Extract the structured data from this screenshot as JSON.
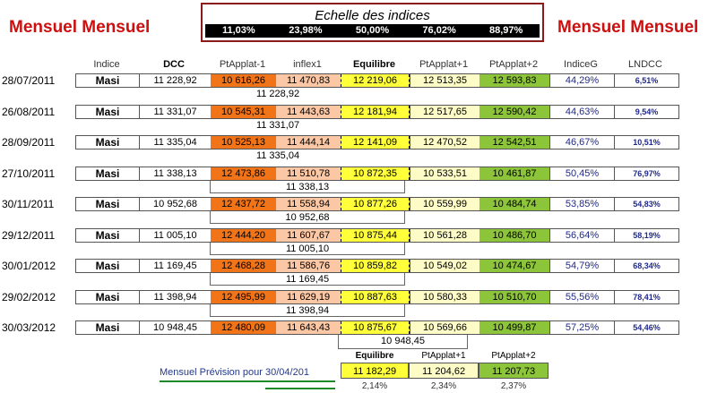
{
  "titles": {
    "left": "Mensuel  Mensuel",
    "right": "Mensuel Mensuel"
  },
  "scale": {
    "title": "Echelle des indices",
    "values": [
      "11,03%",
      "23,98%",
      "50,00%",
      "76,02%",
      "88,97%"
    ]
  },
  "headers": [
    "Indice",
    "DCC",
    "PtApplat-1",
    "inflex1",
    "Equilibre",
    "PtApplat+1",
    "PtApplat+2",
    "IndiceG",
    "LNDCC"
  ],
  "rows": [
    {
      "date": "28/07/2011",
      "indice": "Masi",
      "dcc": "11 228,92",
      "pa1": "10 616,26",
      "inflex": "11 470,83",
      "equilibre": "12 219,06",
      "pp1": "12 513,35",
      "pp2": "12 593,83",
      "indiceG": "44,29%",
      "lndcc": "6,51%",
      "sub": "11 228,92"
    },
    {
      "date": "26/08/2011",
      "indice": "Masi",
      "dcc": "11 331,07",
      "pa1": "10 545,31",
      "inflex": "11 443,63",
      "equilibre": "12 181,94",
      "pp1": "12 517,65",
      "pp2": "12 590,42",
      "indiceG": "44,63%",
      "lndcc": "9,54%",
      "sub": "11 331,07"
    },
    {
      "date": "28/09/2011",
      "indice": "Masi",
      "dcc": "11 335,04",
      "pa1": "10 525,13",
      "inflex": "11 444,14",
      "equilibre": "12 141,09",
      "pp1": "12 470,52",
      "pp2": "12 542,51",
      "indiceG": "46,67%",
      "lndcc": "10,51%",
      "sub": "11 335,04"
    },
    {
      "date": "27/10/2011",
      "indice": "Masi",
      "dcc": "11 338,13",
      "pa1": "12 473,86",
      "inflex": "11 510,78",
      "equilibre": "10 872,35",
      "pp1": "10 533,51",
      "pp2": "10 461,87",
      "indiceG": "50,45%",
      "lndcc": "76,97%",
      "sub": "11 338,13"
    },
    {
      "date": "30/11/2011",
      "indice": "Masi",
      "dcc": "10 952,68",
      "pa1": "12 437,72",
      "inflex": "11 558,94",
      "equilibre": "10 877,26",
      "pp1": "10 559,99",
      "pp2": "10 484,74",
      "indiceG": "53,85%",
      "lndcc": "54,83%",
      "sub": "10 952,68"
    },
    {
      "date": "29/12/2011",
      "indice": "Masi",
      "dcc": "11 005,10",
      "pa1": "12 444,20",
      "inflex": "11 607,67",
      "equilibre": "10 875,44",
      "pp1": "10 561,28",
      "pp2": "10 486,70",
      "indiceG": "56,64%",
      "lndcc": "58,19%",
      "sub": "11 005,10"
    },
    {
      "date": "30/01/2012",
      "indice": "Masi",
      "dcc": "11 169,45",
      "pa1": "12 468,28",
      "inflex": "11 586,76",
      "equilibre": "10 859,82",
      "pp1": "10 549,02",
      "pp2": "10 474,67",
      "indiceG": "54,79%",
      "lndcc": "68,34%",
      "sub": "11 169,45"
    },
    {
      "date": "29/02/2012",
      "indice": "Masi",
      "dcc": "11 398,94",
      "pa1": "12 495,99",
      "inflex": "11 629,19",
      "equilibre": "10 887,63",
      "pp1": "10 580,33",
      "pp2": "10 510,70",
      "indiceG": "55,56%",
      "lndcc": "78,41%",
      "sub": "11 398,94"
    },
    {
      "date": "30/03/2012",
      "indice": "Masi",
      "dcc": "10 948,45",
      "pa1": "12 480,09",
      "inflex": "11 643,43",
      "equilibre": "10 875,67",
      "pp1": "10 569,66",
      "pp2": "10 499,87",
      "indiceG": "57,25%",
      "lndcc": "54,46%",
      "sub": "10 948,45"
    }
  ],
  "prevision": {
    "label": "Mensuel Prévision pour  30/04/201",
    "headers": [
      "Equilibre",
      "PtApplat+1",
      "PtApplat+2"
    ],
    "values": [
      "11 182,29",
      "11 204,62",
      "11 207,73"
    ],
    "percents": [
      "2,14%",
      "2,34%",
      "2,37%"
    ]
  },
  "colors": {
    "title_red": "#cc1010",
    "ptapplat_minus1": "#f27418",
    "inflex1": "#fbc7a4",
    "equilibre": "#ffff3a",
    "ptapplat_plus1": "#fdfcc6",
    "ptapplat_plus2": "#8cc43a",
    "indiceG_text": "#202a8a",
    "underline_green": "#1c8a28"
  }
}
